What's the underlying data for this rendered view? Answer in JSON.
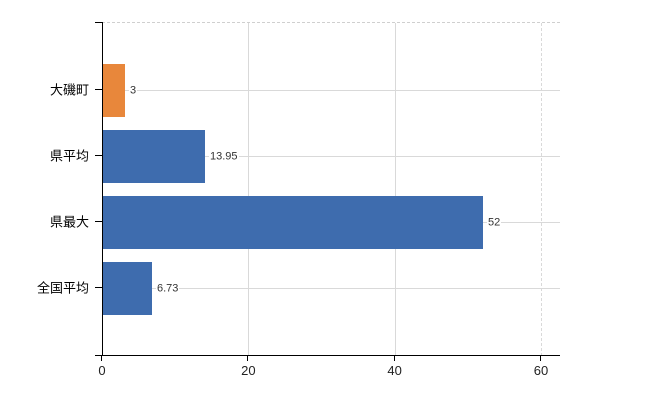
{
  "chart_data": {
    "type": "bar",
    "orientation": "horizontal",
    "title": "",
    "xlabel": "",
    "ylabel": "",
    "categories": [
      "大磯町",
      "県平均",
      "県最大",
      "全国平均"
    ],
    "values": [
      3,
      13.95,
      52,
      6.73
    ],
    "value_labels": [
      "3",
      "13.95",
      "52",
      "6.73"
    ],
    "bar_colors": [
      "#e8873b",
      "#3e6cae",
      "#3e6cae",
      "#3e6cae"
    ],
    "xlim": [
      0,
      60
    ],
    "x_ticks": [
      0,
      20,
      40,
      60
    ],
    "x_tick_labels": [
      "0",
      "20",
      "40",
      "60"
    ],
    "grid": true,
    "legend": null
  },
  "colors": {
    "highlight_bar": "#e8873b",
    "default_bar": "#3e6cae",
    "gridline": "#d9d9d9",
    "frame_dashed": "#cfcfcf",
    "axis": "#000000",
    "category_text": "#000000",
    "value_text": "#333333",
    "tick_text": "#222222",
    "background": "#ffffff"
  }
}
